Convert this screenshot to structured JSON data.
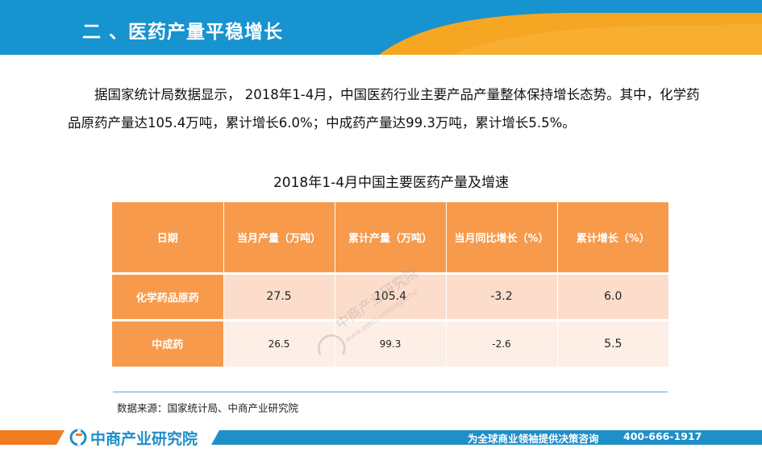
{
  "header": {
    "title": "二 、医药产量平稳增长"
  },
  "paragraph": {
    "text": "据国家统计局数据显示， 2018年1-4月，中国医药行业主要产品产量整体保持增长态势。其中，化学药品原药产量达105.4万吨，累计增长6.0%；中成药产量达99.3万吨，累计增长5.5%。"
  },
  "table": {
    "caption": "2018年1-4月中国主要医药产量及增速",
    "headers": [
      "日期",
      "当月产量（万吨）",
      "累计产量（万吨）",
      "当月同比增长（%）",
      "累计增长（%）"
    ],
    "rows": [
      {
        "name": "化学药品原药",
        "values": [
          "27.5",
          "105.4",
          "-3.2",
          "6.0"
        ]
      },
      {
        "name": "中成药",
        "values": [
          "26.5",
          "99.3",
          "-2.6",
          "5.5"
        ]
      }
    ]
  },
  "source": "数据来源：国家统计局、中商产业研究院",
  "footer": {
    "logo_text": "中商产业研究院",
    "slogan": "为全球商业领袖提供决策咨询",
    "phone": "400-666-1917"
  },
  "watermark": {
    "line1": "中商产业研究院",
    "line2": "www.askci.com/reports/"
  },
  "colors": {
    "header_blue": "#1793cf",
    "accent_orange": "#f5a623",
    "table_orange": "#f79a4c",
    "row_light": "#fcdccb",
    "row_lighter": "#fdeee6"
  }
}
